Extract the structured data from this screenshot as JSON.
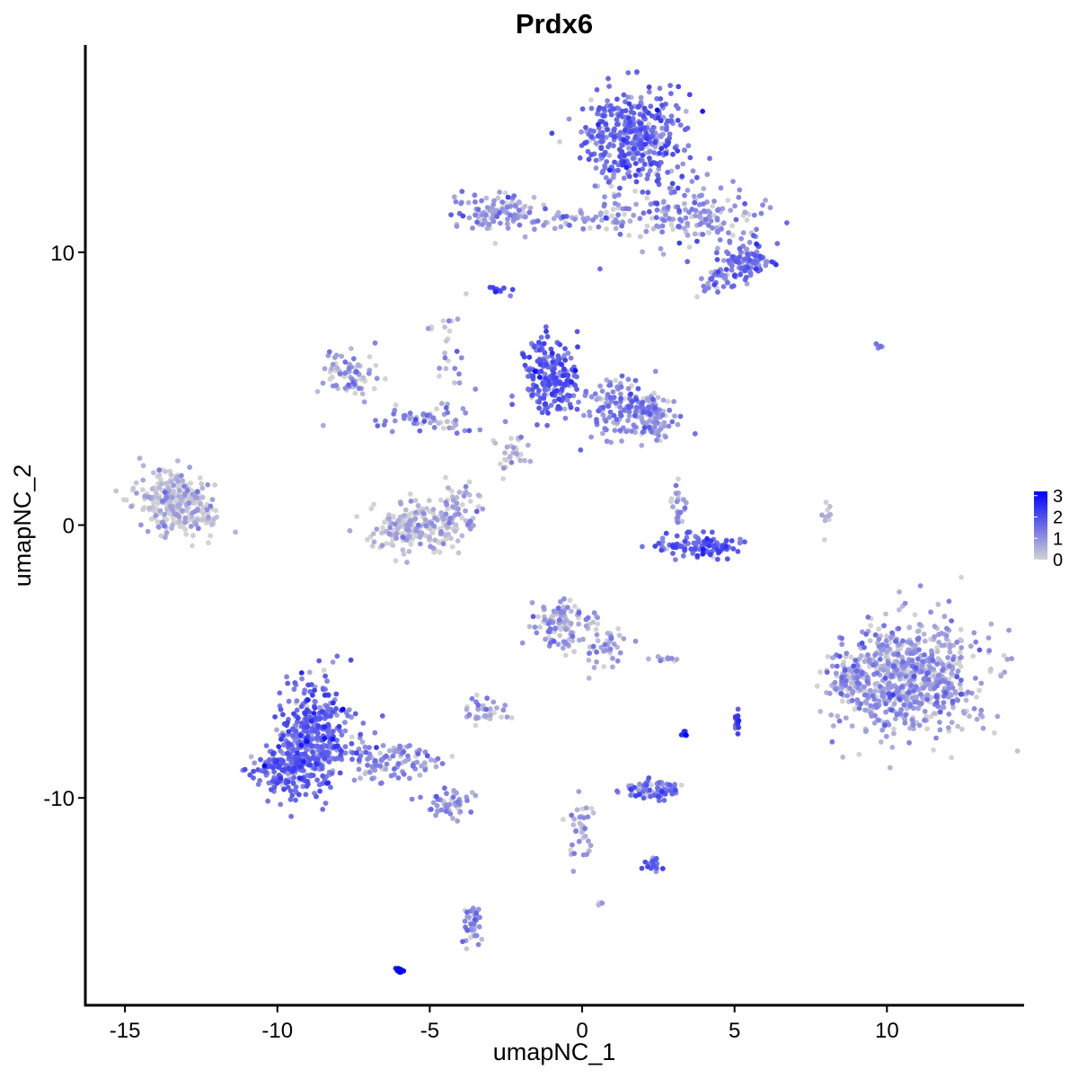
{
  "chart_data": {
    "type": "scatter",
    "title": "Prdx6",
    "xlabel": "umapNC_1",
    "ylabel": "umapNC_2",
    "xlim": [
      -16.3,
      14.5
    ],
    "ylim": [
      -17.6,
      17.6
    ],
    "x_ticks": [
      {
        "value": -15,
        "label": "-15"
      },
      {
        "value": -10,
        "label": "-10"
      },
      {
        "value": -5,
        "label": "-5"
      },
      {
        "value": 0,
        "label": "0"
      },
      {
        "value": 5,
        "label": "5"
      },
      {
        "value": 10,
        "label": "10"
      }
    ],
    "y_ticks": [
      {
        "value": -10,
        "label": "-10"
      },
      {
        "value": 0,
        "label": "0"
      },
      {
        "value": 10,
        "label": "10"
      }
    ],
    "grid": false,
    "legend": {
      "placement": "right",
      "type": "colorbar",
      "range": [
        0,
        3.2
      ],
      "ticks": [
        {
          "value": 0,
          "label": "0"
        },
        {
          "value": 1,
          "label": "1"
        },
        {
          "value": 2,
          "label": "2"
        },
        {
          "value": 3,
          "label": "3"
        }
      ]
    },
    "color_low": "#d3d3d3",
    "color_high": "#0000ff",
    "clusters": [
      {
        "cx": 1.8,
        "cy": 14.2,
        "sx": 1.0,
        "sy": 1.1,
        "n": 420,
        "expr": 1.5
      },
      {
        "cx": 3.6,
        "cy": 11.3,
        "sx": 1.3,
        "sy": 0.7,
        "n": 160,
        "expr": 1.0
      },
      {
        "cx": 5.4,
        "cy": 9.6,
        "sx": 0.5,
        "sy": 0.4,
        "n": 90,
        "expr": 1.4
      },
      {
        "cx": 4.5,
        "cy": 9.0,
        "sx": 0.4,
        "sy": 0.3,
        "n": 40,
        "expr": 1.2
      },
      {
        "cx": -2.8,
        "cy": 11.5,
        "sx": 0.8,
        "sy": 0.4,
        "n": 110,
        "expr": 0.9
      },
      {
        "cx": -0.5,
        "cy": 11.2,
        "sx": 0.9,
        "sy": 0.2,
        "n": 40,
        "expr": 0.9
      },
      {
        "cx": 1.0,
        "cy": 11.5,
        "sx": 0.3,
        "sy": 0.6,
        "n": 30,
        "expr": 1.0
      },
      {
        "cx": -2.8,
        "cy": 8.6,
        "sx": 0.2,
        "sy": 0.1,
        "n": 15,
        "expr": 1.8
      },
      {
        "cx": -1.1,
        "cy": 5.5,
        "sx": 0.6,
        "sy": 0.8,
        "n": 200,
        "expr": 1.7
      },
      {
        "cx": 1.5,
        "cy": 4.3,
        "sx": 1.0,
        "sy": 0.6,
        "n": 170,
        "expr": 1.1
      },
      {
        "cx": 2.3,
        "cy": 3.8,
        "sx": 0.4,
        "sy": 0.4,
        "n": 50,
        "expr": 0.9
      },
      {
        "cx": -7.6,
        "cy": 5.5,
        "sx": 0.5,
        "sy": 0.5,
        "n": 70,
        "expr": 0.8
      },
      {
        "cx": -5.2,
        "cy": 3.9,
        "sx": 1.0,
        "sy": 0.3,
        "n": 60,
        "expr": 1.0
      },
      {
        "cx": -13.4,
        "cy": 0.9,
        "sx": 0.7,
        "sy": 0.7,
        "n": 260,
        "expr": 0.35
      },
      {
        "cx": -12.4,
        "cy": 0.2,
        "sx": 0.4,
        "sy": 0.3,
        "n": 30,
        "expr": 0.3
      },
      {
        "cx": -5.5,
        "cy": -0.1,
        "sx": 0.8,
        "sy": 0.5,
        "n": 200,
        "expr": 0.4
      },
      {
        "cx": -4.0,
        "cy": 0.5,
        "sx": 0.4,
        "sy": 0.6,
        "n": 60,
        "expr": 0.7
      },
      {
        "cx": 3.8,
        "cy": -0.8,
        "sx": 0.9,
        "sy": 0.25,
        "n": 110,
        "expr": 1.7
      },
      {
        "cx": 3.2,
        "cy": 0.6,
        "sx": 0.2,
        "sy": 0.5,
        "n": 25,
        "expr": 0.9
      },
      {
        "cx": 10.8,
        "cy": -5.6,
        "sx": 1.3,
        "sy": 1.2,
        "n": 700,
        "expr": 0.8
      },
      {
        "cx": 8.7,
        "cy": -5.5,
        "sx": 0.5,
        "sy": 0.5,
        "n": 80,
        "expr": 0.6
      },
      {
        "cx": -0.6,
        "cy": -3.6,
        "sx": 0.6,
        "sy": 0.5,
        "n": 110,
        "expr": 0.8
      },
      {
        "cx": 0.7,
        "cy": -4.4,
        "sx": 0.4,
        "sy": 0.4,
        "n": 40,
        "expr": 0.8
      },
      {
        "cx": -8.8,
        "cy": -7.7,
        "sx": 0.7,
        "sy": 1.1,
        "n": 380,
        "expr": 1.6
      },
      {
        "cx": -9.8,
        "cy": -9.0,
        "sx": 0.6,
        "sy": 0.5,
        "n": 150,
        "expr": 1.6
      },
      {
        "cx": -6.3,
        "cy": -8.7,
        "sx": 1.0,
        "sy": 0.4,
        "n": 110,
        "expr": 1.1
      },
      {
        "cx": -4.5,
        "cy": -10.3,
        "sx": 0.5,
        "sy": 0.3,
        "n": 50,
        "expr": 1.0
      },
      {
        "cx": -3.3,
        "cy": -6.9,
        "sx": 0.4,
        "sy": 0.3,
        "n": 35,
        "expr": 0.8
      },
      {
        "cx": 2.4,
        "cy": -9.7,
        "sx": 0.6,
        "sy": 0.2,
        "n": 80,
        "expr": 1.4
      },
      {
        "cx": 2.3,
        "cy": -12.5,
        "sx": 0.2,
        "sy": 0.2,
        "n": 20,
        "expr": 1.3
      },
      {
        "cx": -3.6,
        "cy": -14.6,
        "sx": 0.2,
        "sy": 0.5,
        "n": 40,
        "expr": 1.0
      },
      {
        "cx": 0.0,
        "cy": -11.2,
        "sx": 0.25,
        "sy": 0.8,
        "n": 35,
        "expr": 0.8
      },
      {
        "cx": 5.1,
        "cy": -7.3,
        "sx": 0.06,
        "sy": 0.25,
        "n": 14,
        "expr": 1.9
      },
      {
        "cx": 3.4,
        "cy": -7.6,
        "sx": 0.06,
        "sy": 0.1,
        "n": 8,
        "expr": 2.0
      },
      {
        "cx": 2.7,
        "cy": -4.9,
        "sx": 0.3,
        "sy": 0.05,
        "n": 10,
        "expr": 0.8
      },
      {
        "cx": -6.0,
        "cy": -16.3,
        "sx": 0.1,
        "sy": 0.06,
        "n": 14,
        "expr": 3.1
      },
      {
        "cx": 9.7,
        "cy": 6.6,
        "sx": 0.1,
        "sy": 0.05,
        "n": 5,
        "expr": 1.2
      },
      {
        "cx": 8.0,
        "cy": 0.2,
        "sx": 0.15,
        "sy": 0.5,
        "n": 10,
        "expr": 0.3
      },
      {
        "cx": -4.4,
        "cy": 6.7,
        "sx": 0.4,
        "sy": 0.8,
        "n": 25,
        "expr": 0.6
      },
      {
        "cx": -2.3,
        "cy": 2.6,
        "sx": 0.4,
        "sy": 0.5,
        "n": 30,
        "expr": 0.5
      },
      {
        "cx": 0.6,
        "cy": -13.9,
        "sx": 0.05,
        "sy": 0.05,
        "n": 4,
        "expr": 0.8
      }
    ]
  }
}
